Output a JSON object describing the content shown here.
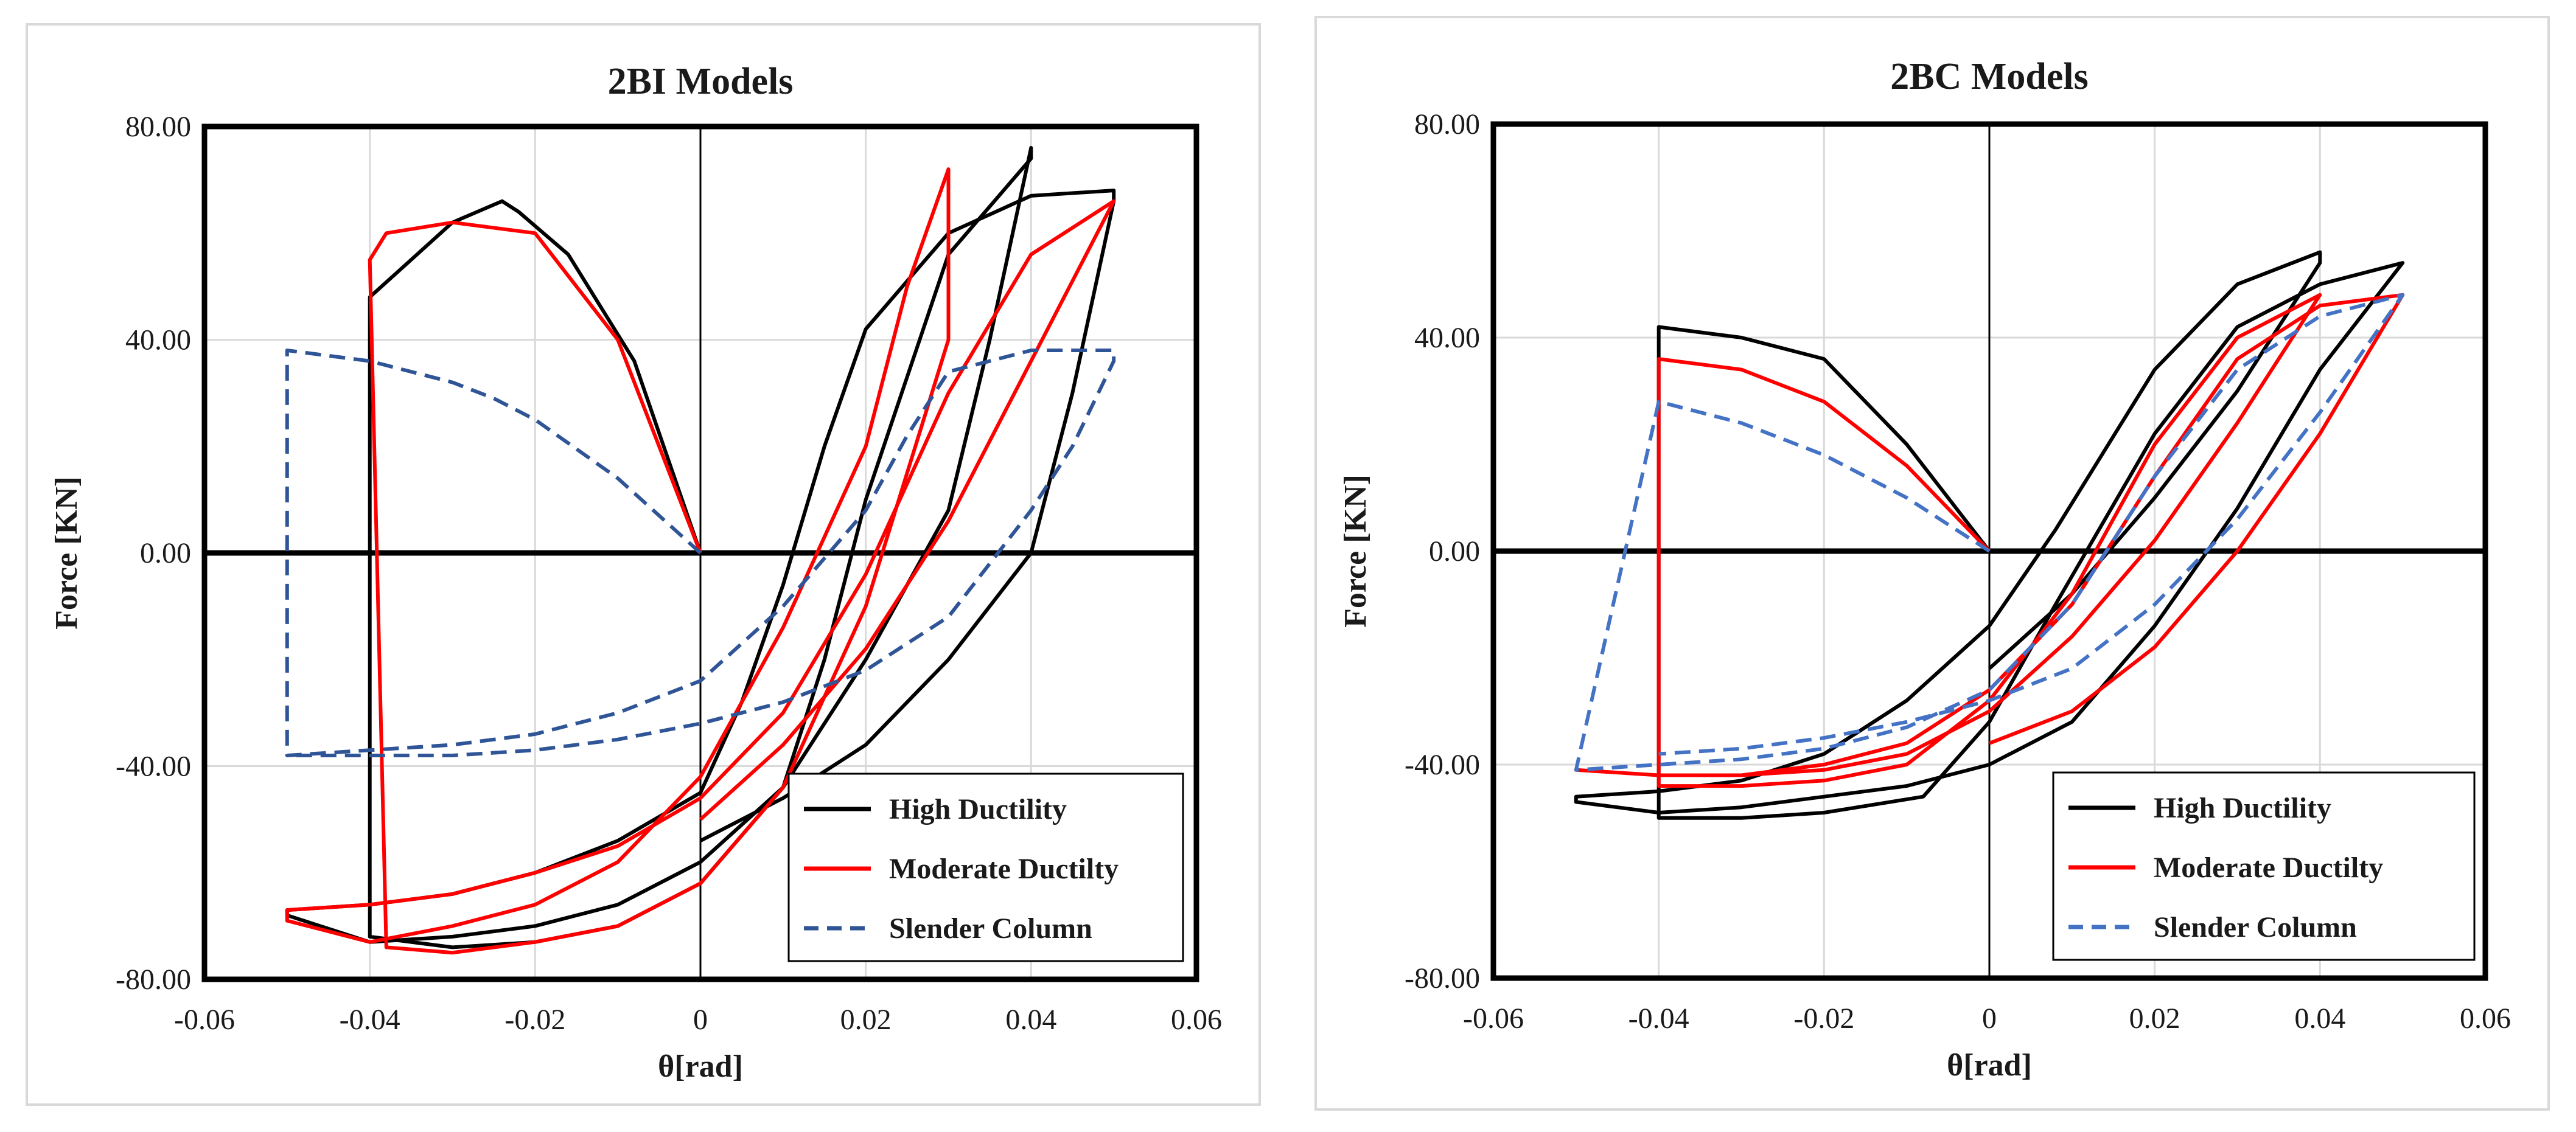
{
  "chart_data": [
    {
      "type": "line",
      "title": "2BI Models",
      "xlabel": "θ[rad]",
      "ylabel": "Force [KN]",
      "xlim": [
        -0.06,
        0.06
      ],
      "ylim": [
        -80,
        80
      ],
      "xticks": [
        "-0.06",
        "-0.04",
        "-0.02",
        "0",
        "0.02",
        "0.04",
        "0.06"
      ],
      "yticks": [
        "80.00",
        "40.00",
        "0.00",
        "-40.00",
        "-80.00"
      ],
      "grid": true,
      "legend_position": "bottom-right",
      "series": [
        {
          "name": "High Ductility",
          "color": "#000000",
          "style": "solid",
          "x": [
            0,
            -0.008,
            -0.016,
            -0.022,
            -0.024,
            -0.03,
            -0.04,
            -0.04,
            -0.03,
            -0.02,
            -0.01,
            0.0,
            0.01,
            0.015,
            0.02,
            0.03,
            0.04,
            0.04,
            0.035,
            0.03,
            0.02,
            0.01,
            0,
            -0.01,
            -0.02,
            -0.03,
            -0.04,
            -0.05,
            -0.05,
            -0.04,
            -0.03,
            -0.02,
            -0.01,
            0,
            0.005,
            0.01,
            0.015,
            0.02,
            0.03,
            0.04,
            0.05,
            0.05,
            0.045,
            0.04,
            0.03,
            0.02,
            0.01,
            0
          ],
          "y": [
            0,
            36,
            56,
            64,
            66,
            62,
            48,
            -72,
            -74,
            -73,
            -70,
            -62,
            -44,
            -20,
            10,
            56,
            74,
            76,
            40,
            8,
            -20,
            -44,
            -58,
            -66,
            -70,
            -72,
            -73,
            -68,
            -67,
            -66,
            -64,
            -60,
            -54,
            -45,
            -28,
            -6,
            20,
            42,
            60,
            67,
            68,
            66,
            30,
            0,
            -20,
            -36,
            -46,
            -54
          ]
        },
        {
          "name": "Moderate Ductilty",
          "color": "#ff0000",
          "style": "solid",
          "x": [
            0,
            -0.01,
            -0.02,
            -0.03,
            -0.038,
            -0.04,
            -0.038,
            -0.03,
            -0.02,
            -0.01,
            0.0,
            0.01,
            0.02,
            0.03,
            0.03,
            0.025,
            0.02,
            0.01,
            0,
            -0.01,
            -0.02,
            -0.03,
            -0.04,
            -0.05,
            -0.05,
            -0.04,
            -0.03,
            -0.02,
            -0.01,
            0,
            0.01,
            0.02,
            0.03,
            0.04,
            0.05,
            0.05,
            0.04,
            0.03,
            0.02,
            0.01,
            0
          ],
          "y": [
            0,
            40,
            60,
            62,
            60,
            55,
            -74,
            -75,
            -73,
            -70,
            -62,
            -44,
            -10,
            40,
            72,
            50,
            20,
            -14,
            -42,
            -58,
            -66,
            -70,
            -73,
            -69,
            -67,
            -66,
            -64,
            -60,
            -55,
            -46,
            -30,
            -4,
            30,
            56,
            66,
            66,
            36,
            6,
            -18,
            -36,
            -50
          ]
        },
        {
          "name": "Slender Column",
          "color": "#2f5597",
          "style": "dashed",
          "x": [
            0,
            -0.01,
            -0.02,
            -0.025,
            -0.03,
            -0.04,
            -0.05,
            -0.05,
            -0.04,
            -0.03,
            -0.02,
            -0.01,
            0,
            0.01,
            0.02,
            0.025,
            0.03,
            0.04,
            0.05,
            0.05,
            0.045,
            0.04,
            0.03,
            0.02,
            0.01,
            0,
            -0.01,
            -0.02,
            -0.03,
            -0.04,
            -0.05
          ],
          "y": [
            0,
            14,
            25,
            29,
            32,
            36,
            38,
            -38,
            -37,
            -36,
            -34,
            -30,
            -24,
            -10,
            8,
            22,
            34,
            38,
            38,
            36,
            20,
            8,
            -12,
            -22,
            -28,
            -32,
            -35,
            -37,
            -38,
            -38,
            -38
          ]
        }
      ]
    },
    {
      "type": "line",
      "title": "2BC Models",
      "xlabel": "θ[rad]",
      "ylabel": "Force [KN]",
      "xlim": [
        -0.06,
        0.06
      ],
      "ylim": [
        -80,
        80
      ],
      "xticks": [
        "-0.06",
        "-0.04",
        "-0.02",
        "0",
        "0.02",
        "0.04",
        "0.06"
      ],
      "yticks": [
        "80.00",
        "40.00",
        "0.00",
        "-40.00",
        "-80.00"
      ],
      "grid": true,
      "legend_position": "bottom-right",
      "series": [
        {
          "name": "High Ductility",
          "color": "#000000",
          "style": "solid",
          "x": [
            0,
            -0.01,
            -0.02,
            -0.03,
            -0.04,
            -0.04,
            -0.03,
            -0.02,
            -0.008,
            0.0,
            0.008,
            0.02,
            0.03,
            0.04,
            0.05,
            0.05,
            0.04,
            0.03,
            0.02,
            0.01,
            0,
            -0.01,
            -0.02,
            -0.03,
            -0.04,
            -0.05,
            -0.05,
            -0.04,
            -0.03,
            -0.02,
            -0.01,
            0,
            0.008,
            0.02,
            0.03,
            0.04,
            0.04,
            0.03,
            0.02,
            0.01,
            0
          ],
          "y": [
            0,
            20,
            36,
            40,
            42,
            -50,
            -50,
            -49,
            -46,
            -32,
            -10,
            22,
            42,
            50,
            54,
            54,
            34,
            8,
            -14,
            -32,
            -40,
            -44,
            -46,
            -48,
            -49,
            -47,
            -46,
            -45,
            -43,
            -38,
            -28,
            -14,
            4,
            34,
            50,
            56,
            54,
            30,
            10,
            -8,
            -22
          ]
        },
        {
          "name": "Moderate Ductilty",
          "color": "#ff0000",
          "style": "solid",
          "x": [
            0,
            -0.01,
            -0.02,
            -0.03,
            -0.04,
            -0.04,
            -0.03,
            -0.02,
            -0.01,
            0,
            0.01,
            0.02,
            0.03,
            0.04,
            0.04,
            0.03,
            0.02,
            0.01,
            0,
            -0.01,
            -0.02,
            -0.03,
            -0.04,
            -0.05,
            -0.04,
            -0.03,
            -0.02,
            -0.01,
            0,
            0.01,
            0.02,
            0.03,
            0.04,
            0.05,
            0.05,
            0.04,
            0.03,
            0.02,
            0.01,
            0
          ],
          "y": [
            0,
            16,
            28,
            34,
            36,
            -44,
            -44,
            -43,
            -40,
            -28,
            -8,
            20,
            40,
            48,
            48,
            24,
            2,
            -16,
            -30,
            -38,
            -41,
            -42,
            -42,
            -41,
            -42,
            -42,
            -40,
            -36,
            -26,
            -10,
            14,
            36,
            46,
            48,
            48,
            22,
            0,
            -18,
            -30,
            -36
          ]
        },
        {
          "name": "Slender Column",
          "color": "#4472c4",
          "style": "dashed",
          "x": [
            0,
            -0.01,
            -0.02,
            -0.03,
            -0.04,
            -0.05,
            -0.04,
            -0.03,
            -0.02,
            -0.01,
            0,
            0.01,
            0.02,
            0.03,
            0.04,
            0.05,
            0.05,
            0.04,
            0.03,
            0.02,
            0.01,
            0,
            -0.01,
            -0.02,
            -0.03,
            -0.04
          ],
          "y": [
            0,
            10,
            18,
            24,
            28,
            -41,
            -40,
            -39,
            -37,
            -33,
            -26,
            -10,
            14,
            34,
            44,
            48,
            48,
            26,
            6,
            -10,
            -22,
            -28,
            -32,
            -35,
            -37,
            -38
          ]
        }
      ]
    }
  ]
}
